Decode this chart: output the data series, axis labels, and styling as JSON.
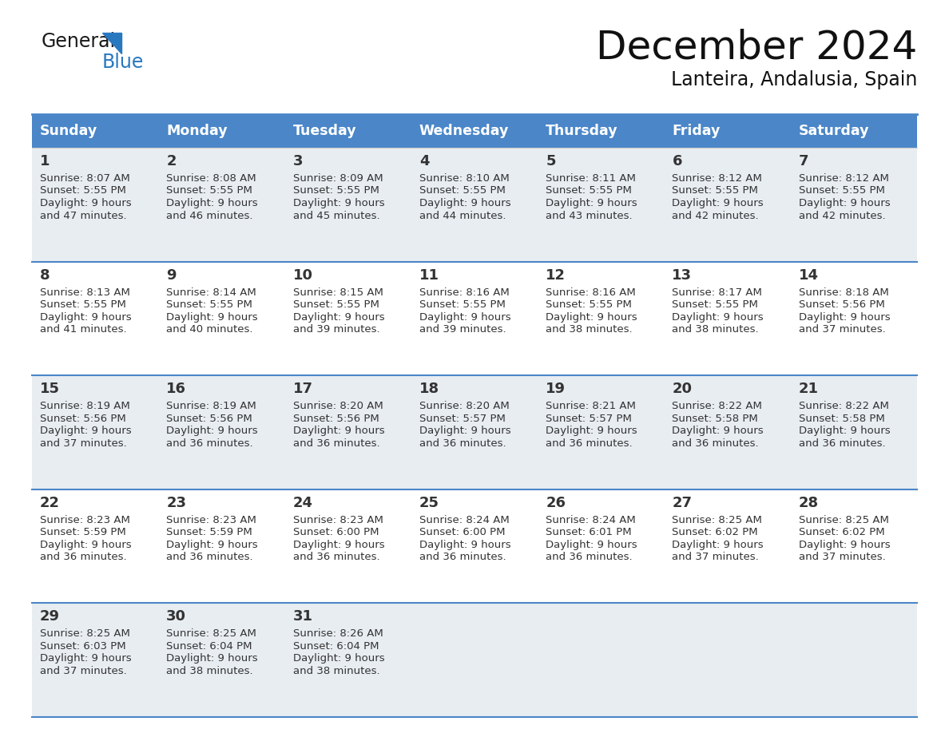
{
  "title": "December 2024",
  "subtitle": "Lanteira, Andalusia, Spain",
  "header_bg": "#4a86c8",
  "header_text_color": "#ffffff",
  "row_bg_light": "#e8edf2",
  "row_bg_white": "#ffffff",
  "border_color": "#4a86c8",
  "text_color": "#333333",
  "logo_black": "#1a1a1a",
  "logo_blue": "#2878c0",
  "logo_triangle_color": "#2878c0",
  "days_of_week": [
    "Sunday",
    "Monday",
    "Tuesday",
    "Wednesday",
    "Thursday",
    "Friday",
    "Saturday"
  ],
  "weeks": [
    [
      {
        "day": 1,
        "sunrise": "8:07 AM",
        "sunset": "5:55 PM",
        "daylight_line1": "Daylight: 9 hours",
        "daylight_line2": "and 47 minutes."
      },
      {
        "day": 2,
        "sunrise": "8:08 AM",
        "sunset": "5:55 PM",
        "daylight_line1": "Daylight: 9 hours",
        "daylight_line2": "and 46 minutes."
      },
      {
        "day": 3,
        "sunrise": "8:09 AM",
        "sunset": "5:55 PM",
        "daylight_line1": "Daylight: 9 hours",
        "daylight_line2": "and 45 minutes."
      },
      {
        "day": 4,
        "sunrise": "8:10 AM",
        "sunset": "5:55 PM",
        "daylight_line1": "Daylight: 9 hours",
        "daylight_line2": "and 44 minutes."
      },
      {
        "day": 5,
        "sunrise": "8:11 AM",
        "sunset": "5:55 PM",
        "daylight_line1": "Daylight: 9 hours",
        "daylight_line2": "and 43 minutes."
      },
      {
        "day": 6,
        "sunrise": "8:12 AM",
        "sunset": "5:55 PM",
        "daylight_line1": "Daylight: 9 hours",
        "daylight_line2": "and 42 minutes."
      },
      {
        "day": 7,
        "sunrise": "8:12 AM",
        "sunset": "5:55 PM",
        "daylight_line1": "Daylight: 9 hours",
        "daylight_line2": "and 42 minutes."
      }
    ],
    [
      {
        "day": 8,
        "sunrise": "8:13 AM",
        "sunset": "5:55 PM",
        "daylight_line1": "Daylight: 9 hours",
        "daylight_line2": "and 41 minutes."
      },
      {
        "day": 9,
        "sunrise": "8:14 AM",
        "sunset": "5:55 PM",
        "daylight_line1": "Daylight: 9 hours",
        "daylight_line2": "and 40 minutes."
      },
      {
        "day": 10,
        "sunrise": "8:15 AM",
        "sunset": "5:55 PM",
        "daylight_line1": "Daylight: 9 hours",
        "daylight_line2": "and 39 minutes."
      },
      {
        "day": 11,
        "sunrise": "8:16 AM",
        "sunset": "5:55 PM",
        "daylight_line1": "Daylight: 9 hours",
        "daylight_line2": "and 39 minutes."
      },
      {
        "day": 12,
        "sunrise": "8:16 AM",
        "sunset": "5:55 PM",
        "daylight_line1": "Daylight: 9 hours",
        "daylight_line2": "and 38 minutes."
      },
      {
        "day": 13,
        "sunrise": "8:17 AM",
        "sunset": "5:55 PM",
        "daylight_line1": "Daylight: 9 hours",
        "daylight_line2": "and 38 minutes."
      },
      {
        "day": 14,
        "sunrise": "8:18 AM",
        "sunset": "5:56 PM",
        "daylight_line1": "Daylight: 9 hours",
        "daylight_line2": "and 37 minutes."
      }
    ],
    [
      {
        "day": 15,
        "sunrise": "8:19 AM",
        "sunset": "5:56 PM",
        "daylight_line1": "Daylight: 9 hours",
        "daylight_line2": "and 37 minutes."
      },
      {
        "day": 16,
        "sunrise": "8:19 AM",
        "sunset": "5:56 PM",
        "daylight_line1": "Daylight: 9 hours",
        "daylight_line2": "and 36 minutes."
      },
      {
        "day": 17,
        "sunrise": "8:20 AM",
        "sunset": "5:56 PM",
        "daylight_line1": "Daylight: 9 hours",
        "daylight_line2": "and 36 minutes."
      },
      {
        "day": 18,
        "sunrise": "8:20 AM",
        "sunset": "5:57 PM",
        "daylight_line1": "Daylight: 9 hours",
        "daylight_line2": "and 36 minutes."
      },
      {
        "day": 19,
        "sunrise": "8:21 AM",
        "sunset": "5:57 PM",
        "daylight_line1": "Daylight: 9 hours",
        "daylight_line2": "and 36 minutes."
      },
      {
        "day": 20,
        "sunrise": "8:22 AM",
        "sunset": "5:58 PM",
        "daylight_line1": "Daylight: 9 hours",
        "daylight_line2": "and 36 minutes."
      },
      {
        "day": 21,
        "sunrise": "8:22 AM",
        "sunset": "5:58 PM",
        "daylight_line1": "Daylight: 9 hours",
        "daylight_line2": "and 36 minutes."
      }
    ],
    [
      {
        "day": 22,
        "sunrise": "8:23 AM",
        "sunset": "5:59 PM",
        "daylight_line1": "Daylight: 9 hours",
        "daylight_line2": "and 36 minutes."
      },
      {
        "day": 23,
        "sunrise": "8:23 AM",
        "sunset": "5:59 PM",
        "daylight_line1": "Daylight: 9 hours",
        "daylight_line2": "and 36 minutes."
      },
      {
        "day": 24,
        "sunrise": "8:23 AM",
        "sunset": "6:00 PM",
        "daylight_line1": "Daylight: 9 hours",
        "daylight_line2": "and 36 minutes."
      },
      {
        "day": 25,
        "sunrise": "8:24 AM",
        "sunset": "6:00 PM",
        "daylight_line1": "Daylight: 9 hours",
        "daylight_line2": "and 36 minutes."
      },
      {
        "day": 26,
        "sunrise": "8:24 AM",
        "sunset": "6:01 PM",
        "daylight_line1": "Daylight: 9 hours",
        "daylight_line2": "and 36 minutes."
      },
      {
        "day": 27,
        "sunrise": "8:25 AM",
        "sunset": "6:02 PM",
        "daylight_line1": "Daylight: 9 hours",
        "daylight_line2": "and 37 minutes."
      },
      {
        "day": 28,
        "sunrise": "8:25 AM",
        "sunset": "6:02 PM",
        "daylight_line1": "Daylight: 9 hours",
        "daylight_line2": "and 37 minutes."
      }
    ],
    [
      {
        "day": 29,
        "sunrise": "8:25 AM",
        "sunset": "6:03 PM",
        "daylight_line1": "Daylight: 9 hours",
        "daylight_line2": "and 37 minutes."
      },
      {
        "day": 30,
        "sunrise": "8:25 AM",
        "sunset": "6:04 PM",
        "daylight_line1": "Daylight: 9 hours",
        "daylight_line2": "and 38 minutes."
      },
      {
        "day": 31,
        "sunrise": "8:26 AM",
        "sunset": "6:04 PM",
        "daylight_line1": "Daylight: 9 hours",
        "daylight_line2": "and 38 minutes."
      },
      null,
      null,
      null,
      null
    ]
  ]
}
